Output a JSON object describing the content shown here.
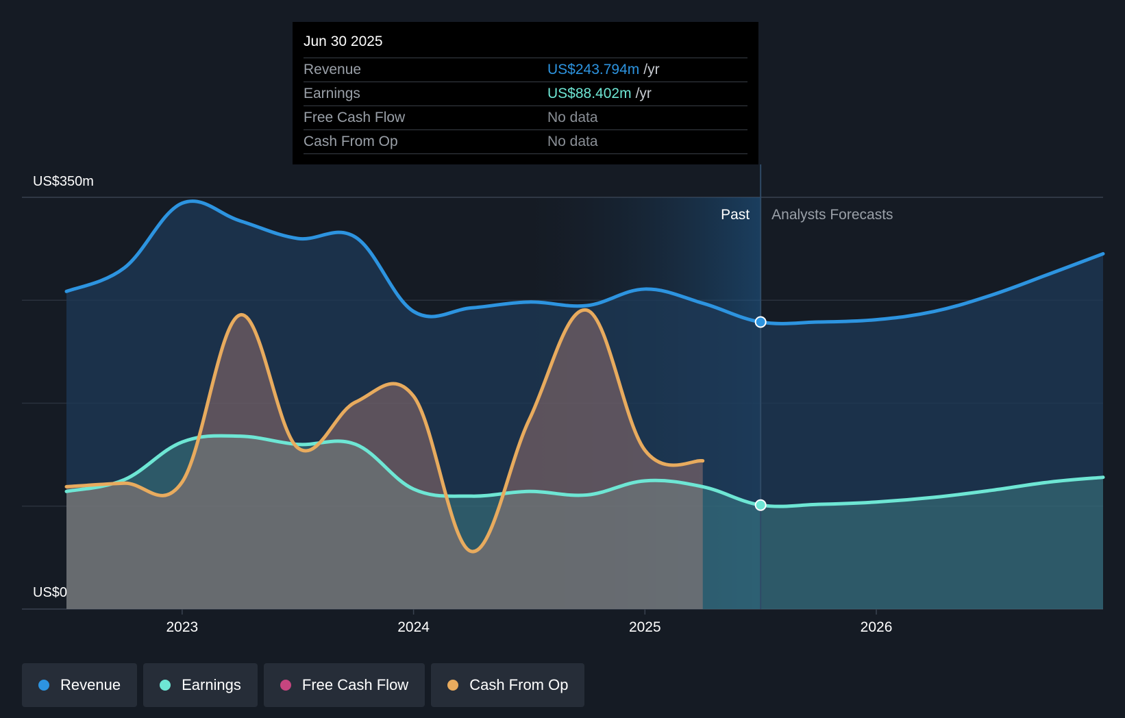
{
  "tooltip": {
    "date": "Jun 30 2025",
    "rows": [
      {
        "label": "Revenue",
        "value": "US$243.794m",
        "unit": "/yr",
        "color": "#2d94e0"
      },
      {
        "label": "Earnings",
        "value": "US$88.402m",
        "unit": "/yr",
        "color": "#6ee6d4"
      },
      {
        "label": "Free Cash Flow",
        "value": "No data",
        "unit": "",
        "color": "#8a8f96"
      },
      {
        "label": "Cash From Op",
        "value": "No data",
        "unit": "",
        "color": "#8a8f96"
      }
    ]
  },
  "regions": {
    "past": "Past",
    "forecast": "Analysts Forecasts"
  },
  "legend": [
    {
      "label": "Revenue",
      "color": "#2d94e0"
    },
    {
      "label": "Earnings",
      "color": "#6ee6d4"
    },
    {
      "label": "Free Cash Flow",
      "color": "#c6457f"
    },
    {
      "label": "Cash From Op",
      "color": "#e8ab5e"
    }
  ],
  "chart_data": {
    "type": "area",
    "y_label_top": "US$350m",
    "y_label_bottom": "US$0",
    "ylim": [
      0,
      350
    ],
    "xlim": [
      2022.5,
      2026.98
    ],
    "x_ticks": [
      2023,
      2024,
      2025,
      2026
    ],
    "x_tick_labels": [
      "2023",
      "2024",
      "2025",
      "2026"
    ],
    "past_end": 2025.5,
    "highlight_start": 2024.5,
    "series": [
      {
        "name": "Revenue",
        "color": "#2d94e0",
        "x": [
          2022.5,
          2022.75,
          2023.0,
          2023.25,
          2023.5,
          2023.75,
          2024.0,
          2024.25,
          2024.5,
          2024.75,
          2025.0,
          2025.25,
          2025.5,
          2025.75,
          2026.0,
          2026.25,
          2026.5,
          2026.75,
          2026.98
        ],
        "y": [
          270,
          290,
          345,
          330,
          315,
          316,
          253,
          256,
          261,
          258,
          272,
          260,
          244,
          244,
          246,
          253,
          267,
          285,
          302
        ]
      },
      {
        "name": "Earnings",
        "color": "#6ee6d4",
        "x": [
          2022.5,
          2022.75,
          2023.0,
          2023.25,
          2023.5,
          2023.75,
          2024.0,
          2024.25,
          2024.5,
          2024.75,
          2025.0,
          2025.25,
          2025.5,
          2025.75,
          2026.0,
          2026.25,
          2026.5,
          2026.75,
          2026.98
        ],
        "y": [
          100,
          110,
          142,
          147,
          140,
          140,
          102,
          96,
          100,
          97,
          109,
          104,
          88.4,
          89,
          91,
          95,
          101,
          108,
          112
        ]
      },
      {
        "name": "Cash From Op",
        "color": "#e8ab5e",
        "x": [
          2022.5,
          2022.75,
          2023.0,
          2023.25,
          2023.5,
          2023.75,
          2024.0,
          2024.25,
          2024.5,
          2024.75,
          2025.0,
          2025.25
        ],
        "y": [
          104,
          107,
          108,
          250,
          137,
          176,
          181,
          49,
          161,
          254,
          135,
          126
        ]
      }
    ]
  }
}
